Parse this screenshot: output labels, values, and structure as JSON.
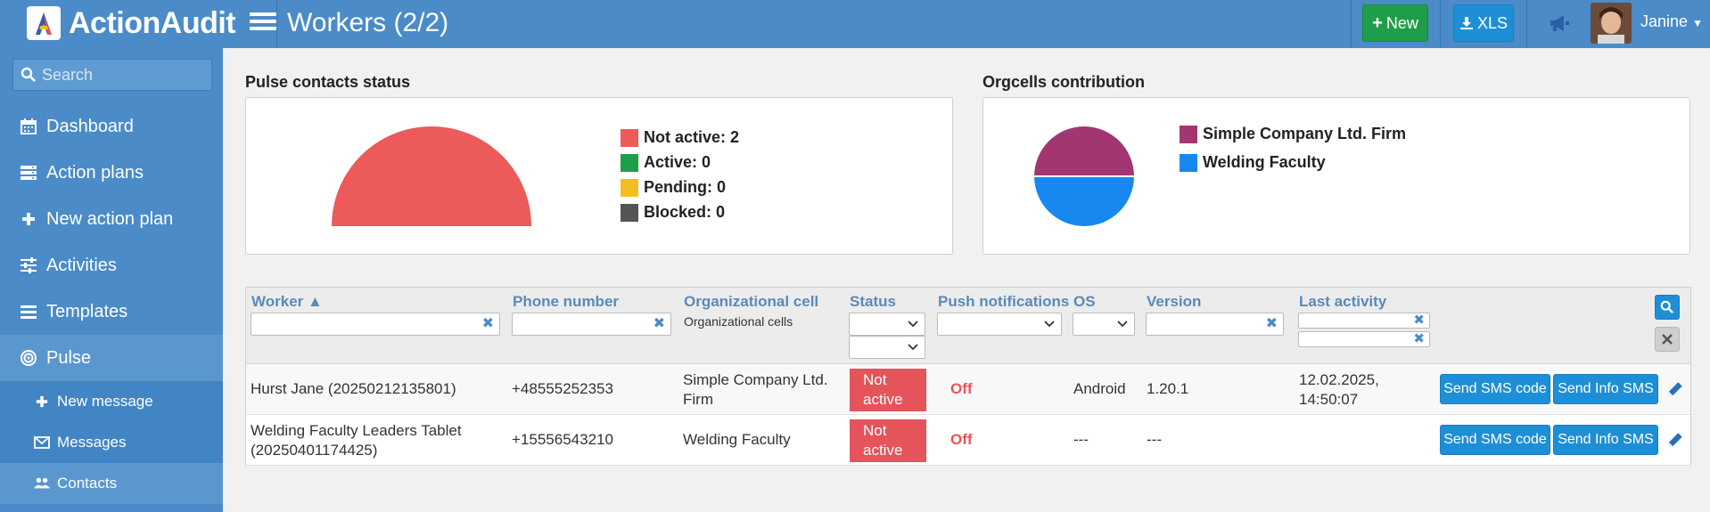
{
  "app": {
    "logo_text": "ActionAudit",
    "page_title": "Workers (2/2)"
  },
  "header": {
    "new_label": "New",
    "xls_label": "XLS",
    "user_name": "Janine"
  },
  "sidebar": {
    "search_placeholder": "Search",
    "items": [
      {
        "label": "Dashboard",
        "icon": "calendar-icon"
      },
      {
        "label": "Action plans",
        "icon": "server-icon"
      },
      {
        "label": "New action plan",
        "icon": "plus-icon"
      },
      {
        "label": "Activities",
        "icon": "sliders-icon"
      },
      {
        "label": "Templates",
        "icon": "list-icon"
      },
      {
        "label": "Pulse",
        "icon": "bullseye-icon"
      }
    ],
    "subitems": [
      {
        "label": "New message",
        "icon": "plus-icon"
      },
      {
        "label": "Messages",
        "icon": "envelope-icon"
      },
      {
        "label": "Contacts",
        "icon": "users-icon"
      }
    ]
  },
  "pulse_status": {
    "title": "Pulse contacts status",
    "legend": [
      {
        "label": "Not active: 2",
        "color": "#ec5a5a"
      },
      {
        "label": "Active: 0",
        "color": "#1e9e4a"
      },
      {
        "label": "Pending: 0",
        "color": "#f6bd23"
      },
      {
        "label": "Blocked: 0",
        "color": "#545454"
      }
    ]
  },
  "orgcells": {
    "title": "Orgcells contribution",
    "legend": [
      {
        "label": "Simple Company Ltd. Firm",
        "color": "#a23670"
      },
      {
        "label": "Welding Faculty",
        "color": "#1888f0"
      }
    ]
  },
  "table": {
    "headers": {
      "worker": "Worker ▲",
      "phone": "Phone number",
      "orgcell": "Organizational cell",
      "orgcell_sub": "Organizational cells",
      "status": "Status",
      "push": "Push notifications",
      "os": "OS",
      "version": "Version",
      "last_activity": "Last activity"
    },
    "rows": [
      {
        "worker": "Hurst Jane (20250212135801)",
        "phone": "+48555252353",
        "orgcell_line1": "Simple Company Ltd.",
        "orgcell_line2": "Firm",
        "status_line1": "Not",
        "status_line2": "active",
        "push": "Off",
        "os": "Android",
        "version": "1.20.1",
        "last_line1": "12.02.2025,",
        "last_line2": "14:50:07",
        "btn_code": "Send SMS code",
        "btn_info": "Send Info SMS"
      },
      {
        "worker_line1": "Welding Faculty Leaders Tablet",
        "worker_line2": "(20250401174425)",
        "phone": "+15556543210",
        "orgcell": "Welding Faculty",
        "status_line1": "Not",
        "status_line2": "active",
        "push": "Off",
        "os": "---",
        "version": "---",
        "btn_code": "Send SMS code",
        "btn_info": "Send Info SMS"
      }
    ]
  }
}
